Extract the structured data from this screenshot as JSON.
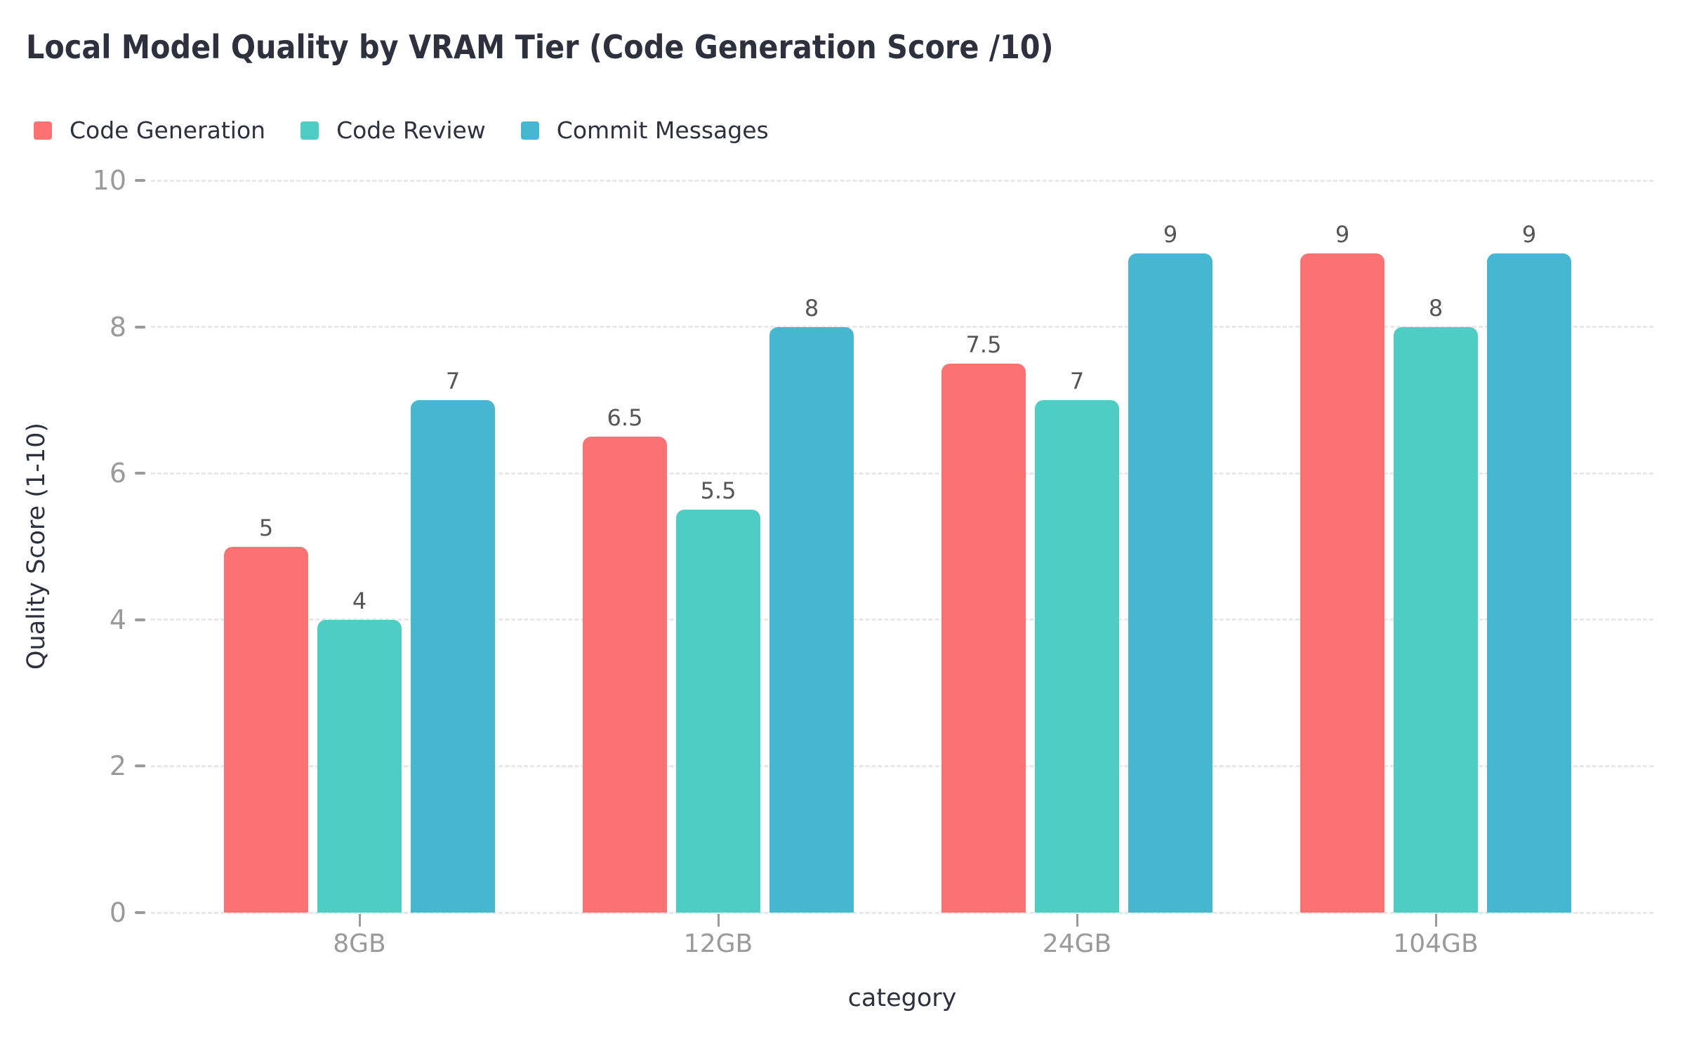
{
  "chart_data": {
    "type": "bar",
    "title": "Local Model Quality by VRAM Tier (Code Generation Score /10)",
    "xlabel": "category",
    "ylabel": "Quality Score (1-10)",
    "categories": [
      "8GB",
      "12GB",
      "24GB",
      "104GB"
    ],
    "series": [
      {
        "name": "Code Generation",
        "color": "#FC7272",
        "values": [
          5,
          6.5,
          7.5,
          9
        ]
      },
      {
        "name": "Code Review",
        "color": "#4ECDC4",
        "values": [
          4,
          5.5,
          7,
          8
        ]
      },
      {
        "name": "Commit Messages",
        "color": "#45B7D1",
        "values": [
          7,
          8,
          9,
          9
        ]
      }
    ],
    "value_labels": [
      [
        "5",
        "6.5",
        "7.5",
        "9"
      ],
      [
        "4",
        "5.5",
        "7",
        "8"
      ],
      [
        "7",
        "8",
        "9",
        "9"
      ]
    ],
    "ylim": [
      0,
      10
    ],
    "yticks": [
      0,
      2,
      4,
      6,
      8,
      10
    ],
    "grid": true,
    "grid_style": "dashed",
    "legend_position": "top-left",
    "colors": {
      "background": "#FFFFFF",
      "gridline": "#E8E8E8",
      "tick_text": "#9A9A9A",
      "title_text": "#2D313E",
      "axis_label_text": "#2D313E",
      "value_label_text": "#555555"
    }
  }
}
